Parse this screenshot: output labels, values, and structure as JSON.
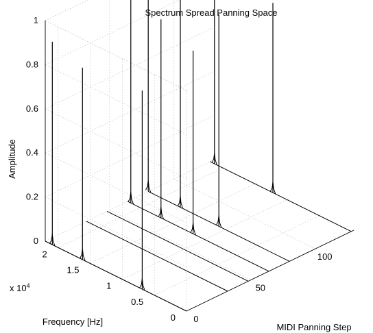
{
  "chart_data": {
    "type": "line",
    "projection": "3d",
    "title": "Spectrum Spread Panning Space",
    "xlabel": "MIDI Panning Step",
    "ylabel": "Frequency [Hz]",
    "zlabel": "Amplitude",
    "y_exponent_label": "x 10",
    "y_exponent_power": "4",
    "xlim": [
      0,
      130
    ],
    "ylim": [
      0,
      22000
    ],
    "zlim": [
      0,
      1
    ],
    "x_ticks": [
      {
        "value": 0,
        "label": "0"
      },
      {
        "value": 50,
        "label": "50"
      },
      {
        "value": 100,
        "label": "100"
      }
    ],
    "y_ticks": [
      {
        "value": 0,
        "label": "0"
      },
      {
        "value": 5000,
        "label": "0.5"
      },
      {
        "value": 10000,
        "label": "1"
      },
      {
        "value": 15000,
        "label": "1.5"
      },
      {
        "value": 20000,
        "label": "2"
      }
    ],
    "z_ticks": [
      {
        "value": 0,
        "label": "0"
      },
      {
        "value": 0.2,
        "label": "0.2"
      },
      {
        "value": 0.4,
        "label": "0.4"
      },
      {
        "value": 0.6,
        "label": "0.6"
      },
      {
        "value": 0.8,
        "label": "0.8"
      },
      {
        "value": 1,
        "label": "1"
      }
    ],
    "grid": true,
    "series": [
      {
        "x": 0,
        "peaks": [
          {
            "freq": 20900,
            "amp": 0.92
          },
          {
            "freq": 16200,
            "amp": 0.87
          },
          {
            "freq": 6900,
            "amp": 0.9
          }
        ]
      },
      {
        "x": 32,
        "peaks": []
      },
      {
        "x": 48,
        "peaks": []
      },
      {
        "x": 64,
        "peaks": [
          {
            "freq": 21500,
            "amp": 0.95
          },
          {
            "freq": 16800,
            "amp": 0.9
          },
          {
            "freq": 11800,
            "amp": 0.83
          }
        ]
      },
      {
        "x": 80,
        "peaks": [
          {
            "freq": 22000,
            "amp": 0.98
          },
          {
            "freq": 17000,
            "amp": 1.0
          },
          {
            "freq": 11000,
            "amp": 0.96
          }
        ]
      },
      {
        "x": 128,
        "peaks": [
          {
            "freq": 21300,
            "amp": 0.93
          },
          {
            "freq": 12200,
            "amp": 0.86
          }
        ]
      }
    ]
  }
}
